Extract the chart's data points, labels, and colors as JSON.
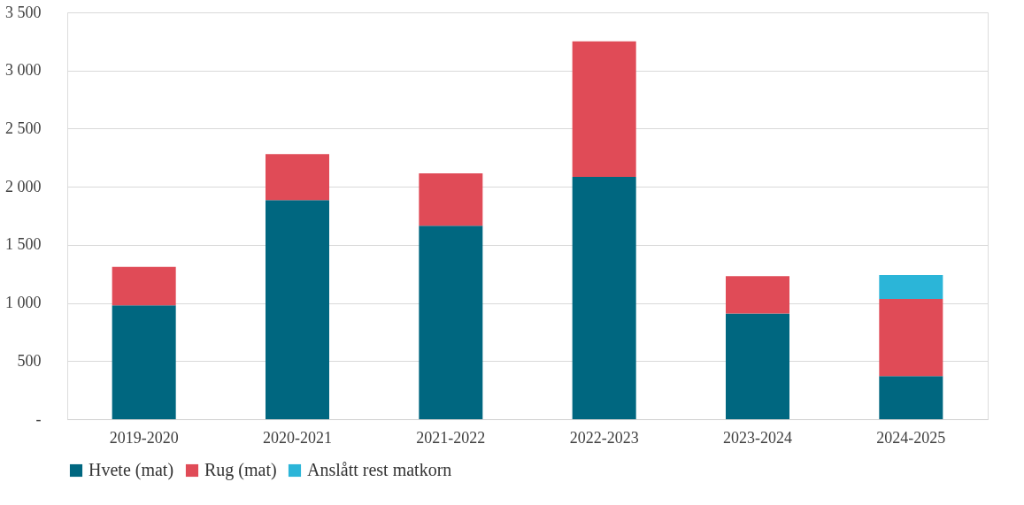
{
  "chart_data": {
    "type": "bar",
    "stacked": true,
    "categories": [
      "2019-2020",
      "2020-2021",
      "2021-2022",
      "2022-2023",
      "2023-2024",
      "2024-2025"
    ],
    "series": [
      {
        "name": "Hvete (mat)",
        "color": "#006780",
        "values": [
          980,
          1885,
          1665,
          2085,
          910,
          370
        ]
      },
      {
        "name": "Rug (mat)",
        "color": "#e04b57",
        "values": [
          330,
          395,
          450,
          1165,
          320,
          665
        ]
      },
      {
        "name": "Anslått rest matkorn",
        "color": "#2bb5d8",
        "values": [
          null,
          null,
          null,
          null,
          null,
          205
        ]
      }
    ],
    "ylim": [
      0,
      3500
    ],
    "yticks": [
      {
        "value": 0,
        "label": "-"
      },
      {
        "value": 500,
        "label": "500"
      },
      {
        "value": 1000,
        "label": "1 000"
      },
      {
        "value": 1500,
        "label": "1 500"
      },
      {
        "value": 2000,
        "label": "2 000"
      },
      {
        "value": 2500,
        "label": "2 500"
      },
      {
        "value": 3000,
        "label": "3 000"
      },
      {
        "value": 3500,
        "label": "3 500"
      }
    ],
    "grid": "y",
    "legend": "bottom"
  }
}
